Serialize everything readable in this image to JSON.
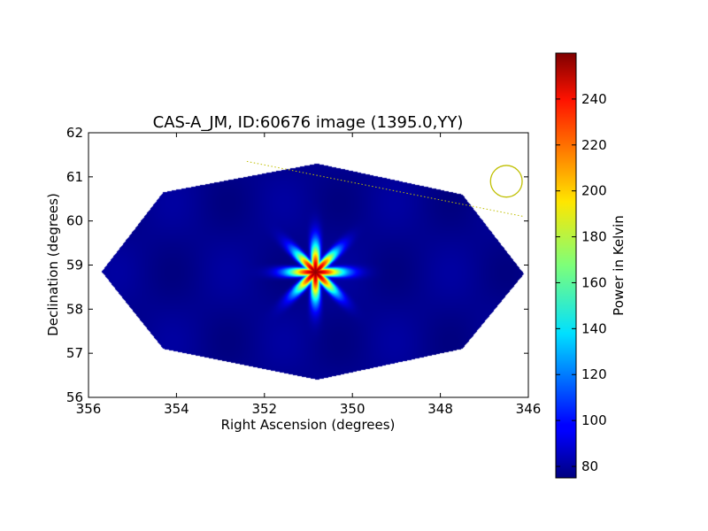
{
  "chart_data": {
    "type": "heatmap",
    "title": "CAS-A_JM, ID:60676 image (1395.0,YY)",
    "xlabel": "Right Ascension (degrees)",
    "ylabel": "Declination (degrees)",
    "xlim": [
      356,
      346
    ],
    "ylim": [
      56,
      62
    ],
    "x_ticks": [
      356,
      354,
      352,
      350,
      348,
      346
    ],
    "y_ticks": [
      56,
      57,
      58,
      59,
      60,
      61,
      62
    ],
    "x_tick_labels": [
      "356",
      "354",
      "352",
      "350",
      "348",
      "346"
    ],
    "y_tick_labels": [
      "56",
      "57",
      "58",
      "59",
      "60",
      "61",
      "62"
    ],
    "colormap": "jet",
    "colorbar": {
      "label": "Power in Kelvin",
      "range": [
        75,
        260
      ],
      "ticks": [
        80,
        100,
        120,
        140,
        160,
        180,
        200,
        220,
        240
      ],
      "tick_labels": [
        "80",
        "100",
        "120",
        "140",
        "160",
        "180",
        "200",
        "220",
        "240"
      ]
    },
    "background_value": 78,
    "source": {
      "ra": 350.85,
      "dec": 58.85,
      "peak": 255,
      "sigma_deg": 0.55,
      "arms": 8
    },
    "coverage_polygon": [
      [
        355.7,
        58.85
      ],
      [
        354.3,
        60.65
      ],
      [
        350.8,
        61.3
      ],
      [
        347.5,
        60.6
      ],
      [
        346.1,
        58.8
      ],
      [
        347.5,
        57.1
      ],
      [
        350.8,
        56.4
      ],
      [
        354.3,
        57.1
      ]
    ],
    "overlay_line": {
      "color": "#bfbf00",
      "points": [
        [
          352.4,
          61.35
        ],
        [
          346.1,
          60.1
        ]
      ]
    },
    "overlay_circle": {
      "color": "#bfbf00",
      "center": [
        346.5,
        60.9
      ],
      "radius_deg": 0.36
    }
  }
}
